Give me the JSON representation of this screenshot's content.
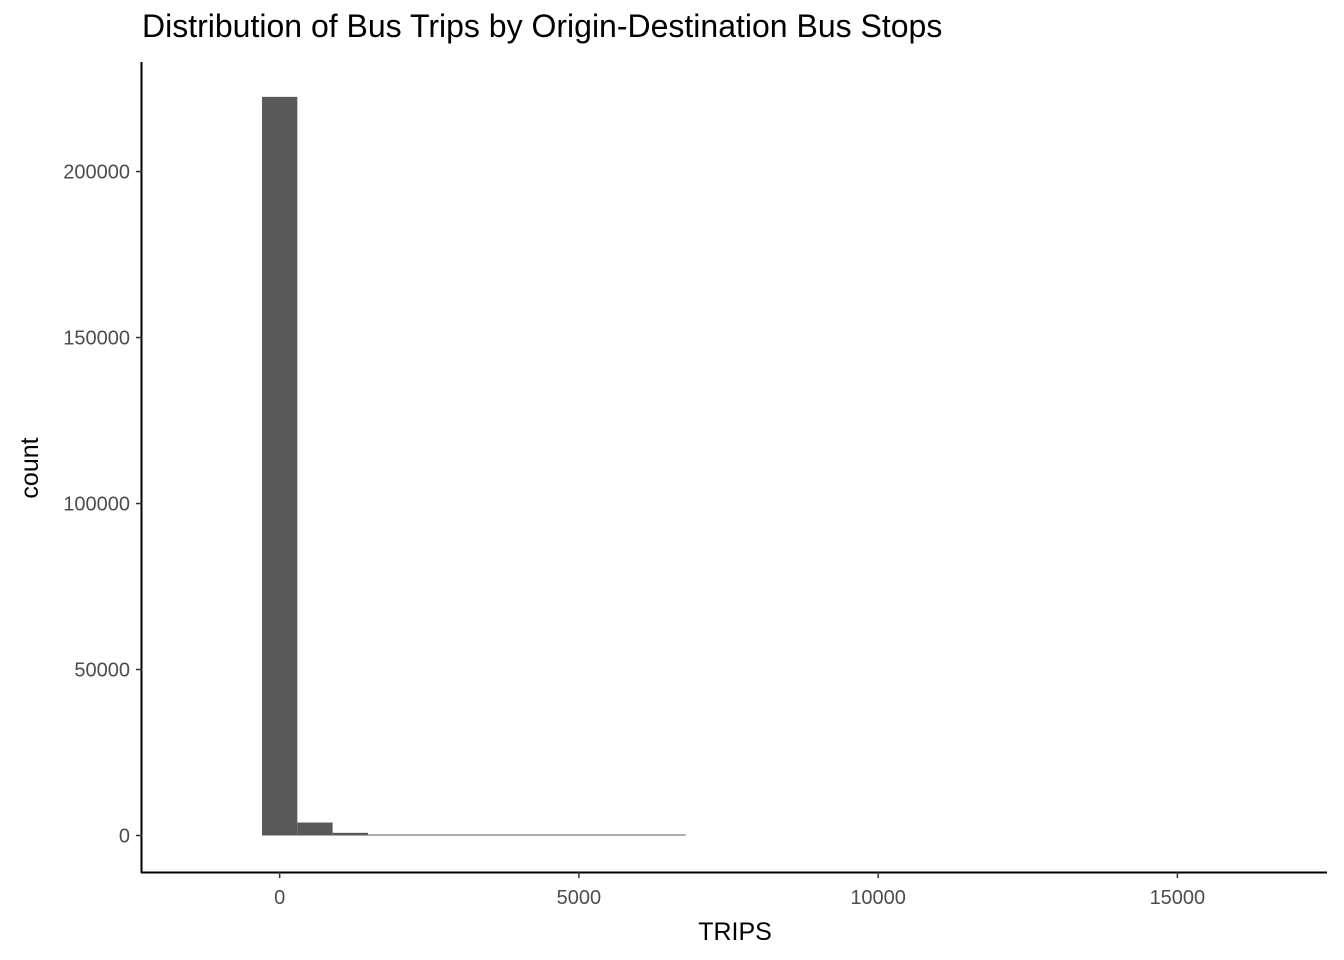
{
  "chart_data": {
    "type": "bar",
    "title": "Distribution of Bus Trips by Origin-Destination Bus Stops",
    "xlabel": "TRIPS",
    "ylabel": "count",
    "xlim": [
      -2300,
      17500
    ],
    "ylim": [
      -11000,
      233000
    ],
    "x_ticks": [
      0,
      5000,
      10000,
      15000
    ],
    "x_tick_labels": [
      "0",
      "5000",
      "10000",
      "15000"
    ],
    "y_ticks": [
      0,
      50000,
      100000,
      150000,
      200000
    ],
    "y_tick_labels": [
      "0",
      "50000",
      "100000",
      "150000",
      "200000"
    ],
    "grid": false,
    "bar_color": "#595959",
    "bins": [
      {
        "x0": -295,
        "x1": 295,
        "count": 222500
      },
      {
        "x0": 295,
        "x1": 885,
        "count": 3900
      },
      {
        "x0": 885,
        "x1": 1475,
        "count": 800
      },
      {
        "x0": 1475,
        "x1": 2065,
        "count": 250
      },
      {
        "x0": 2065,
        "x1": 2655,
        "count": 110
      },
      {
        "x0": 2655,
        "x1": 3245,
        "count": 60
      },
      {
        "x0": 3245,
        "x1": 3835,
        "count": 30
      },
      {
        "x0": 3835,
        "x1": 4425,
        "count": 15
      },
      {
        "x0": 4425,
        "x1": 5015,
        "count": 8
      },
      {
        "x0": 5015,
        "x1": 5605,
        "count": 4
      },
      {
        "x0": 5605,
        "x1": 6195,
        "count": 2
      },
      {
        "x0": 6195,
        "x1": 6785,
        "count": 1
      }
    ]
  }
}
